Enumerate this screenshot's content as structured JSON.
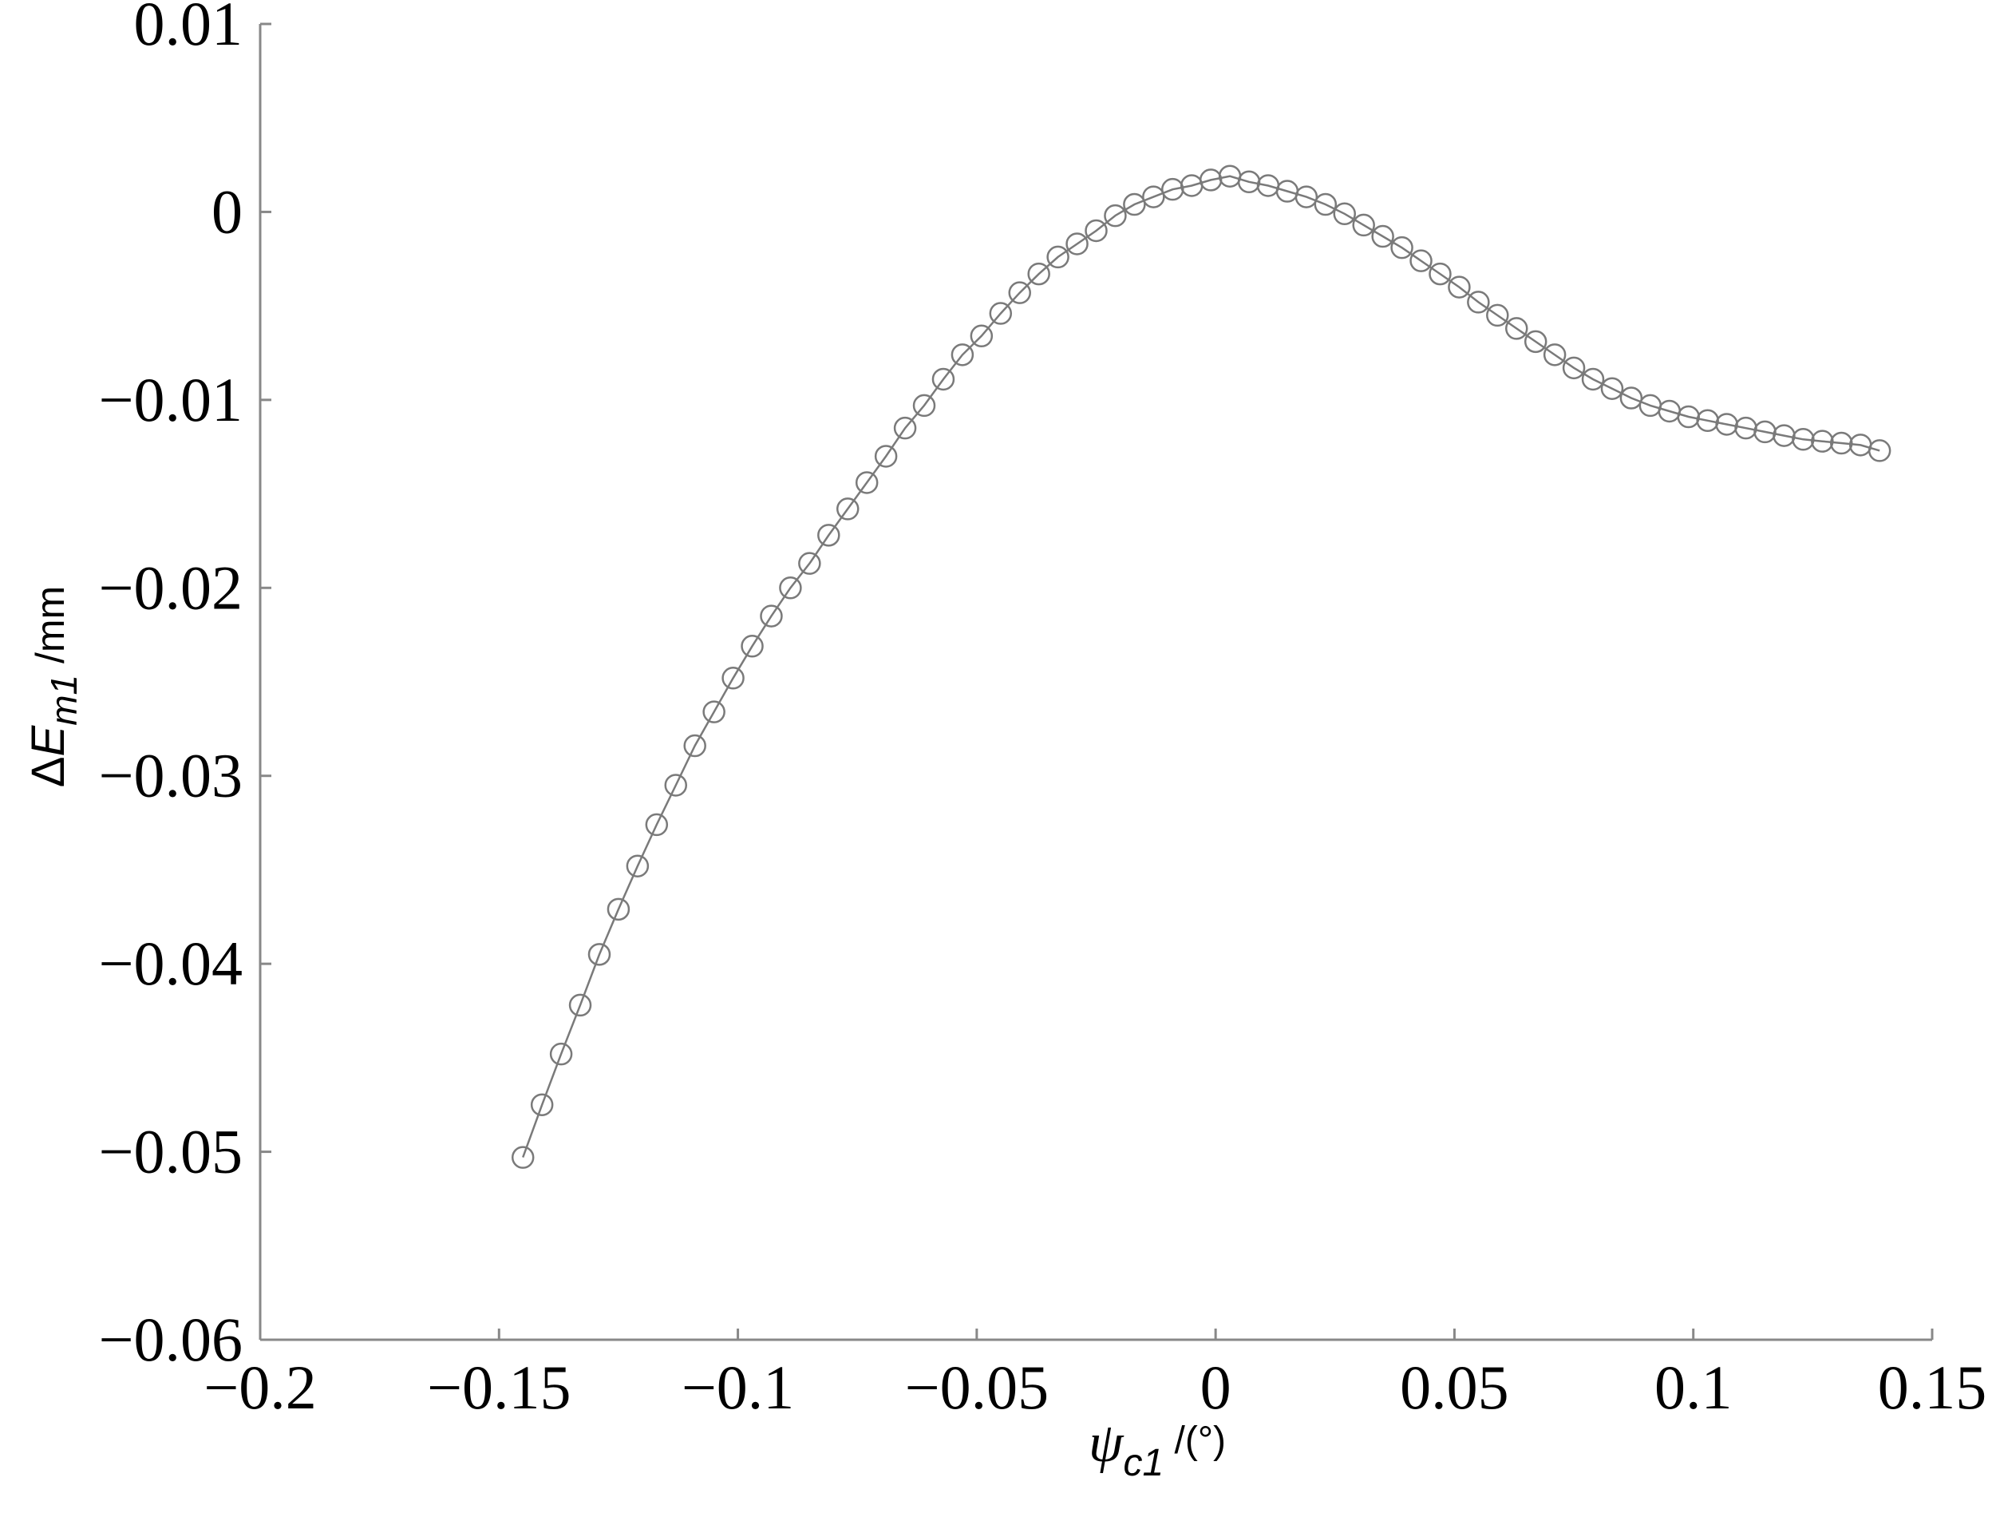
{
  "chart_data": {
    "type": "line",
    "xlabel": [
      "ψ",
      "c1",
      " /(°)"
    ],
    "ylabel": [
      "Δ",
      "E",
      "m1",
      " /mm"
    ],
    "color": "#7a7a7a",
    "xlim": [
      -0.2,
      0.15
    ],
    "ylim": [
      -0.06,
      0.01
    ],
    "xticks": [
      {
        "value": -0.2,
        "label": "−0.2"
      },
      {
        "value": -0.15,
        "label": "−0.15"
      },
      {
        "value": -0.1,
        "label": "−0.1"
      },
      {
        "value": -0.05,
        "label": "−0.05"
      },
      0,
      0.05,
      0.1,
      0.15
    ],
    "yticks": [
      {
        "value": -0.06,
        "label": "−0.06"
      },
      {
        "value": -0.05,
        "label": "−0.05"
      },
      {
        "value": -0.04,
        "label": "−0.04"
      },
      {
        "value": -0.03,
        "label": "−0.03"
      },
      {
        "value": -0.02,
        "label": "−0.02"
      },
      {
        "value": -0.01,
        "label": "−0.01"
      },
      0,
      0.01
    ],
    "x": [
      -0.145,
      -0.141,
      -0.137,
      -0.133,
      -0.129,
      -0.125,
      -0.121,
      -0.117,
      -0.113,
      -0.109,
      -0.105,
      -0.101,
      -0.097,
      -0.093,
      -0.089,
      -0.085,
      -0.081,
      -0.077,
      -0.073,
      -0.069,
      -0.065,
      -0.061,
      -0.057,
      -0.053,
      -0.049,
      -0.045,
      -0.041,
      -0.037,
      -0.033,
      -0.029,
      -0.025,
      -0.021,
      -0.017,
      -0.013,
      -0.009,
      -0.005,
      -0.001,
      0.003,
      0.007,
      0.011,
      0.015,
      0.019,
      0.023,
      0.027,
      0.031,
      0.035,
      0.039,
      0.043,
      0.047,
      0.051,
      0.055,
      0.059,
      0.063,
      0.067,
      0.071,
      0.075,
      0.079,
      0.083,
      0.087,
      0.091,
      0.095,
      0.099,
      0.103,
      0.107,
      0.111,
      0.115,
      0.119,
      0.123,
      0.127,
      0.131,
      0.135,
      0.139
    ],
    "values": [
      -0.0503,
      -0.0475,
      -0.0448,
      -0.0422,
      -0.0395,
      -0.0371,
      -0.0348,
      -0.0326,
      -0.0305,
      -0.0284,
      -0.0266,
      -0.0248,
      -0.0231,
      -0.0215,
      -0.02,
      -0.0187,
      -0.0172,
      -0.0158,
      -0.0144,
      -0.013,
      -0.0115,
      -0.0103,
      -0.0089,
      -0.0076,
      -0.0066,
      -0.0054,
      -0.0043,
      -0.0033,
      -0.0024,
      -0.0017,
      -0.001,
      -0.0002,
      0.0004,
      0.0008,
      0.0012,
      0.0014,
      0.0017,
      0.0019,
      0.0016,
      0.0014,
      0.0011,
      0.0008,
      0.0004,
      -0.0001,
      -0.0007,
      -0.0013,
      -0.0019,
      -0.0026,
      -0.0033,
      -0.004,
      -0.0048,
      -0.0055,
      -0.0062,
      -0.0069,
      -0.0076,
      -0.0083,
      -0.0089,
      -0.0094,
      -0.0099,
      -0.0103,
      -0.0106,
      -0.0109,
      -0.0111,
      -0.0113,
      -0.0115,
      -0.0117,
      -0.0119,
      -0.0121,
      -0.0122,
      -0.0123,
      -0.0124,
      -0.0127
    ]
  }
}
